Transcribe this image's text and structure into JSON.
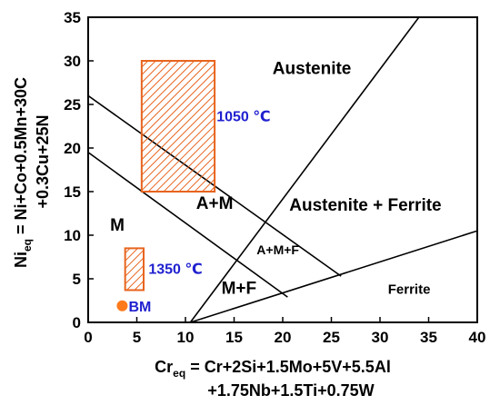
{
  "chart_data": {
    "type": "diagram",
    "xlim": [
      0,
      40
    ],
    "ylim": [
      0,
      35
    ],
    "x_ticks": [
      0,
      5,
      10,
      15,
      20,
      25,
      30,
      35,
      40
    ],
    "y_ticks": [
      0,
      5,
      10,
      15,
      20,
      25,
      30,
      35
    ],
    "x_title": {
      "main": "Cr",
      "sub": "eq",
      "line1": " = Cr+2Si+1.5Mo+5V+5.5Al",
      "line2": "+1.75Nb+1.5Ti+0.75W"
    },
    "y_title": {
      "main": "Ni",
      "sub": "eq",
      "line1": " = Ni+Co+0.5Mn+30C",
      "line2": "+0.3Cu+25N"
    },
    "boundaries": [
      {
        "from": [
          0,
          26
        ],
        "to": [
          26,
          5.3
        ]
      },
      {
        "from": [
          0,
          19.5
        ],
        "to": [
          20.5,
          2.9
        ]
      },
      {
        "from": [
          10.5,
          0
        ],
        "to": [
          34,
          35
        ]
      },
      {
        "from": [
          10.5,
          0
        ],
        "to": [
          40,
          10.5
        ]
      }
    ],
    "regions": [
      {
        "label": "Austenite",
        "x": 23,
        "y": 28.5
      },
      {
        "label": "Austenite + Ferrite",
        "x": 28.5,
        "y": 12.8
      },
      {
        "label": "A+M",
        "x": 13,
        "y": 13
      },
      {
        "label": "A+M+F",
        "x": 19.5,
        "y": 7.8
      },
      {
        "label": "M+F",
        "x": 15.5,
        "y": 3.3
      },
      {
        "label": "M",
        "x": 3,
        "y": 10.5
      },
      {
        "label": "Ferrite",
        "x": 33,
        "y": 3.3
      }
    ],
    "hatched_boxes": [
      {
        "x": [
          5.5,
          13
        ],
        "y": [
          15,
          30
        ],
        "label": "1050 ℃",
        "label_at": [
          13.2,
          23.7
        ]
      },
      {
        "x": [
          3.8,
          5.7
        ],
        "y": [
          3.7,
          8.5
        ],
        "label": "1350 ℃",
        "label_at": [
          6.2,
          6.2
        ]
      }
    ],
    "points": [
      {
        "label": "BM",
        "x": 3.5,
        "y": 1.9,
        "color": "#ff7a1a"
      }
    ],
    "colors": {
      "hatch": "#e8641e",
      "temperature_label": "#2020d0",
      "point": "#ff7a1a"
    }
  }
}
